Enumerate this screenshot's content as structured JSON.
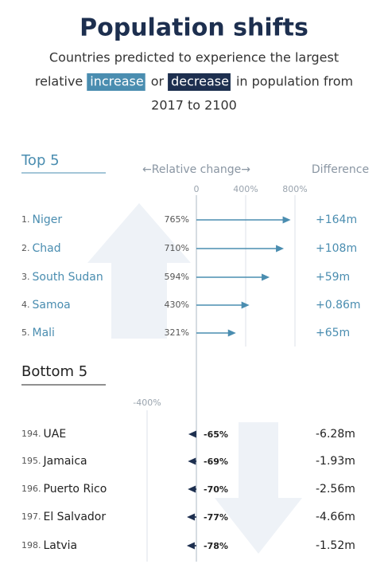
{
  "chart_data": {
    "type": "arrow-bar",
    "title": "Population shifts",
    "subtitle": {
      "line1": "Countries predicted to experience the largest",
      "before": "relative",
      "increase": "increase",
      "middle": "or",
      "decrease": "decrease",
      "after": "in population from",
      "line3": "2017 to 2100"
    },
    "axis_label": "←Relative change→",
    "difference_label": "Difference",
    "color": "#4a8db0",
    "xlim": [
      -400,
      900
    ],
    "groups": [
      {
        "name": "Top 5",
        "xticks": [
          0,
          {
            "value": 400,
            "label": "400%"
          },
          {
            "value": 800,
            "label": "800%"
          }
        ],
        "ranks": [
          "1.",
          "2.",
          "3.",
          "4.",
          "5."
        ],
        "categories": [
          "Niger",
          "Chad",
          "South Sudan",
          "Samoa",
          "Mali"
        ],
        "values": [
          765,
          710,
          594,
          430,
          321
        ],
        "value_labels": [
          "765%",
          "710%",
          "594%",
          "430%",
          "321%"
        ],
        "differences": [
          "+164m",
          "+108m",
          "+59m",
          "+0.86m",
          "+65m"
        ]
      },
      {
        "name": "Bottom 5",
        "xticks": [
          {
            "value": -400,
            "label": "-400%"
          }
        ],
        "ranks": [
          "194.",
          "195.",
          "196.",
          "197.",
          "198."
        ],
        "categories": [
          "UAE",
          "Jamaica",
          "Puerto Rico",
          "El Salvador",
          "Latvia"
        ],
        "values": [
          -65,
          -69,
          -70,
          -77,
          -78
        ],
        "value_labels": [
          "-65%",
          "-69%",
          "-70%",
          "-77%",
          "-78%"
        ],
        "differences": [
          "-6.28m",
          "-1.93m",
          "-2.56m",
          "-4.66m",
          "-1.52m"
        ]
      }
    ]
  }
}
